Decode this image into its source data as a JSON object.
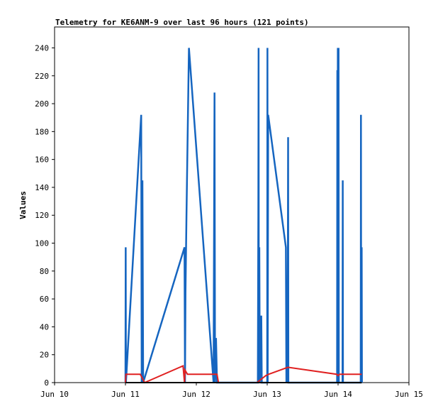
{
  "chart_data": {
    "type": "line",
    "title": "Telemetry for KE6ANM-9 over last 96 hours (121 points)",
    "ylabel": "Values",
    "xlabel": "",
    "xlim": [
      "Jun 10",
      "Jun 15"
    ],
    "ylim": [
      0,
      255
    ],
    "x_ticks": [
      "Jun 10",
      "Jun 11",
      "Jun 12",
      "Jun 13",
      "Jun 14",
      "Jun 15"
    ],
    "y_ticks": [
      0,
      20,
      40,
      60,
      80,
      100,
      120,
      140,
      160,
      180,
      200,
      220,
      240
    ],
    "grid": false,
    "series": [
      {
        "color": "#1565c0",
        "points": [
          [
            "Jun 11 00:00",
            0
          ],
          [
            "Jun 11 00:05",
            97
          ],
          [
            "Jun 11 00:10",
            0
          ],
          [
            "Jun 11 05:20",
            192
          ],
          [
            "Jun 11 05:30",
            0
          ],
          [
            "Jun 11 05:45",
            145
          ],
          [
            "Jun 11 06:00",
            0
          ],
          [
            "Jun 11 20:00",
            97
          ],
          [
            "Jun 11 20:10",
            0
          ],
          [
            "Jun 11 20:20",
            65
          ],
          [
            "Jun 11 20:40",
            120
          ],
          [
            "Jun 11 21:30",
            240
          ],
          [
            "Jun 12 05:50",
            0
          ],
          [
            "Jun 12 06:00",
            105
          ],
          [
            "Jun 12 06:10",
            208
          ],
          [
            "Jun 12 06:20",
            0
          ],
          [
            "Jun 12 06:40",
            32
          ],
          [
            "Jun 12 07:00",
            0
          ],
          [
            "Jun 12 20:50",
            0
          ],
          [
            "Jun 12 21:00",
            120
          ],
          [
            "Jun 12 21:05",
            240
          ],
          [
            "Jun 12 21:10",
            0
          ],
          [
            "Jun 12 21:20",
            97
          ],
          [
            "Jun 12 21:30",
            0
          ],
          [
            "Jun 12 22:00",
            48
          ],
          [
            "Jun 12 22:10",
            0
          ],
          [
            "Jun 13 00:00",
            0
          ],
          [
            "Jun 13 00:05",
            240
          ],
          [
            "Jun 13 00:10",
            0
          ],
          [
            "Jun 13 00:20",
            192
          ],
          [
            "Jun 13 06:20",
            97
          ],
          [
            "Jun 13 06:30",
            0
          ],
          [
            "Jun 13 06:40",
            48
          ],
          [
            "Jun 13 06:50",
            0
          ],
          [
            "Jun 13 07:00",
            88
          ],
          [
            "Jun 13 07:05",
            176
          ],
          [
            "Jun 13 07:10",
            0
          ],
          [
            "Jun 13 23:40",
            0
          ],
          [
            "Jun 13 23:45",
            224
          ],
          [
            "Jun 13 23:50",
            0
          ],
          [
            "Jun 13 23:55",
            240
          ],
          [
            "Jun 14 00:00",
            180
          ],
          [
            "Jun 14 00:05",
            0
          ],
          [
            "Jun 14 00:10",
            240
          ],
          [
            "Jun 14 00:15",
            0
          ],
          [
            "Jun 14 01:30",
            0
          ],
          [
            "Jun 14 01:35",
            145
          ],
          [
            "Jun 14 01:40",
            0
          ],
          [
            "Jun 14 07:40",
            0
          ],
          [
            "Jun 14 07:45",
            192
          ],
          [
            "Jun 14 07:50",
            0
          ],
          [
            "Jun 14 08:00",
            97
          ],
          [
            "Jun 14 08:05",
            0
          ]
        ]
      },
      {
        "color": "#e02020",
        "points": [
          [
            "Jun 11 00:00",
            0
          ],
          [
            "Jun 11 00:10",
            6
          ],
          [
            "Jun 11 05:00",
            6
          ],
          [
            "Jun 11 06:30",
            0
          ],
          [
            "Jun 11 19:30",
            12
          ],
          [
            "Jun 11 20:00",
            0
          ],
          [
            "Jun 11 20:10",
            9
          ],
          [
            "Jun 11 21:00",
            6
          ],
          [
            "Jun 12 07:00",
            6
          ],
          [
            "Jun 12 07:30",
            0
          ],
          [
            "Jun 12 20:30",
            0
          ],
          [
            "Jun 12 23:30",
            5
          ],
          [
            "Jun 13 00:30",
            6
          ],
          [
            "Jun 13 07:00",
            11
          ],
          [
            "Jun 13 23:30",
            6
          ],
          [
            "Jun 14 00:00",
            5
          ],
          [
            "Jun 14 00:30",
            6
          ],
          [
            "Jun 14 08:00",
            6
          ]
        ]
      },
      {
        "color": "#000000",
        "points": [
          [
            "Jun 11 00:00",
            0
          ],
          [
            "Jun 14 08:00",
            0
          ]
        ]
      }
    ]
  }
}
